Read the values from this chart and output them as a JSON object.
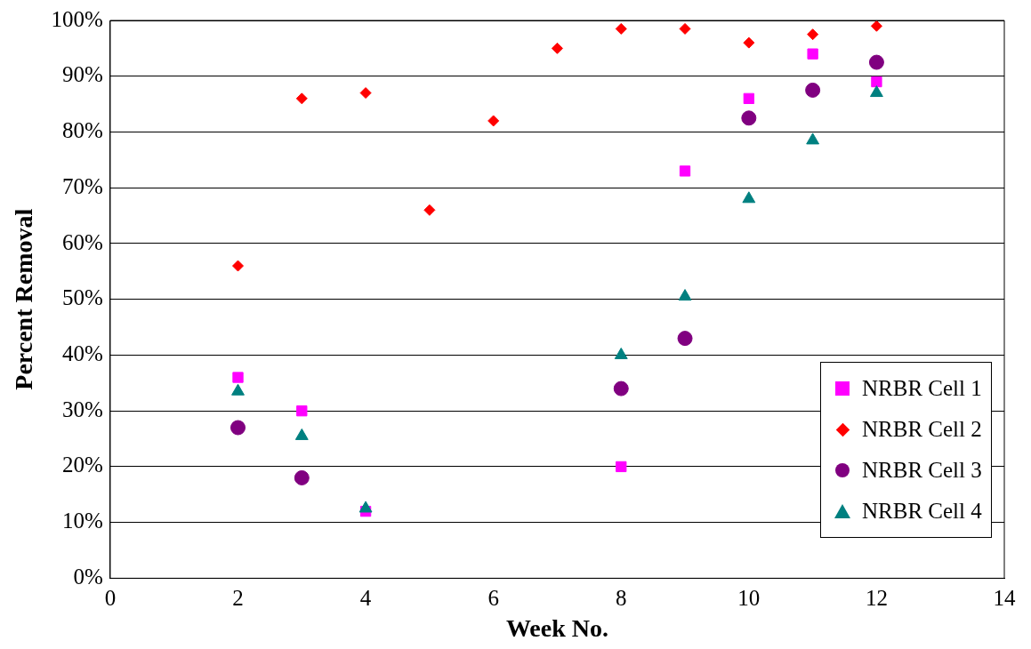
{
  "chart_data": {
    "type": "scatter",
    "xlabel": "Week No.",
    "ylabel": "Percent Removal",
    "xlim": [
      0,
      14
    ],
    "xticks": [
      0,
      2,
      4,
      6,
      8,
      10,
      12,
      14
    ],
    "ylim": [
      0,
      100
    ],
    "yticks": [
      {
        "value": 0,
        "label": "0%"
      },
      {
        "value": 10,
        "label": "10%"
      },
      {
        "value": 20,
        "label": "20%"
      },
      {
        "value": 30,
        "label": "30%"
      },
      {
        "value": 40,
        "label": "40%"
      },
      {
        "value": 50,
        "label": "50%"
      },
      {
        "value": 60,
        "label": "60%"
      },
      {
        "value": 70,
        "label": "70%"
      },
      {
        "value": 80,
        "label": "80%"
      },
      {
        "value": 90,
        "label": "90%"
      },
      {
        "value": 100,
        "label": "100%"
      }
    ],
    "grid": "y",
    "legend": "bottom right",
    "series": [
      {
        "name": "NRBR Cell 1",
        "color": "#ff00ff",
        "marker": "square",
        "x": [
          2,
          3,
          4,
          8,
          9,
          10,
          11,
          12
        ],
        "values": [
          36,
          30,
          12,
          20,
          73,
          86,
          94,
          89
        ]
      },
      {
        "name": "NRBR Cell 2",
        "color": "#ff0000",
        "marker": "diamond",
        "x": [
          2,
          3,
          4,
          5,
          6,
          7,
          8,
          9,
          10,
          11,
          12
        ],
        "values": [
          56,
          86,
          87,
          66,
          82,
          95,
          98.5,
          98.5,
          96,
          97.5,
          99
        ]
      },
      {
        "name": "NRBR Cell 3",
        "color": "#800080",
        "marker": "circle",
        "x": [
          2,
          3,
          8,
          9,
          10,
          11,
          12
        ],
        "values": [
          27,
          18,
          34,
          43,
          82.5,
          87.5,
          92.5
        ]
      },
      {
        "name": "NRBR Cell 4",
        "color": "#008080",
        "marker": "triangle",
        "x": [
          2,
          3,
          4,
          8,
          9,
          10,
          11,
          12
        ],
        "values": [
          33.5,
          25.5,
          12.5,
          40,
          50.5,
          68,
          78.5,
          87
        ]
      }
    ]
  }
}
